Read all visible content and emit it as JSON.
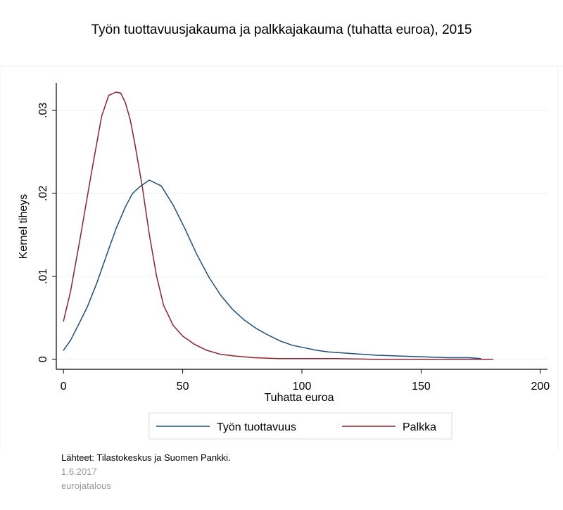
{
  "chart_data": {
    "type": "line",
    "title": "Työn tuottavuusjakauma ja palkkajakauma (tuhatta euroa), 2015",
    "xlabel": "Tuhatta euroa",
    "ylabel": "Kernel tiheys",
    "xlim": [
      -3,
      203
    ],
    "ylim": [
      -0.0012,
      0.0333
    ],
    "x_ticks": [
      0,
      50,
      100,
      150,
      200
    ],
    "x_tick_labels": [
      "0",
      "50",
      "100",
      "150",
      "200"
    ],
    "y_ticks": [
      0,
      0.01,
      0.02,
      0.03
    ],
    "y_tick_labels": [
      "0",
      ".01",
      ".02",
      ".03"
    ],
    "grid": true,
    "legend_position": "bottom",
    "series": [
      {
        "name": "Työn tuottavuus",
        "color": "#1f4e79",
        "x": [
          0,
          3,
          6,
          10,
          14,
          18,
          22,
          26,
          29,
          32,
          36,
          41,
          46,
          51,
          56,
          61,
          66,
          71,
          76,
          81,
          86,
          91,
          96,
          101,
          106,
          111,
          121,
          131,
          141,
          151,
          161,
          170,
          175
        ],
        "y": [
          0.0011,
          0.0023,
          0.004,
          0.0063,
          0.0092,
          0.0125,
          0.0157,
          0.0184,
          0.02,
          0.0208,
          0.0216,
          0.0209,
          0.0186,
          0.0157,
          0.0126,
          0.0099,
          0.0077,
          0.006,
          0.0047,
          0.0037,
          0.0029,
          0.0022,
          0.0017,
          0.0014,
          0.0011,
          0.0009,
          0.0007,
          0.0005,
          0.0004,
          0.0003,
          0.0002,
          0.0002,
          0.0001
        ]
      },
      {
        "name": "Palkka",
        "color": "#8b2332",
        "x": [
          0,
          3,
          7,
          12,
          16,
          19,
          22,
          24,
          26,
          28,
          30,
          33,
          36,
          39,
          42,
          46,
          50,
          55,
          60,
          66,
          72,
          80,
          90,
          100,
          115,
          130,
          150,
          170,
          180
        ],
        "y": [
          0.0046,
          0.0082,
          0.0146,
          0.0229,
          0.0293,
          0.0318,
          0.0322,
          0.0321,
          0.0309,
          0.0289,
          0.0259,
          0.0209,
          0.0151,
          0.0101,
          0.0065,
          0.0041,
          0.0028,
          0.0018,
          0.0011,
          0.0006,
          0.0004,
          0.0002,
          0.0001,
          0.0001,
          0.0001,
          0,
          0,
          0,
          0
        ]
      }
    ]
  },
  "footer": {
    "source": "Lähteet: Tilastokeskus ja Suomen Pankki.",
    "date": "1.6.2017",
    "brand": "eurojatalous"
  },
  "colors": {
    "grid": "#eaf0f3",
    "axis": "#000000",
    "plot_background": "#ffffff"
  }
}
